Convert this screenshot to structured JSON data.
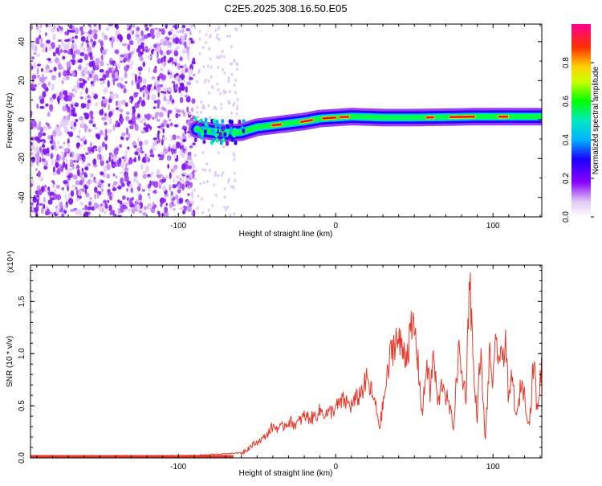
{
  "title": "C2E5.2025.308.16.50.E05",
  "chart_data": [
    {
      "type": "heatmap",
      "xlabel": "Height of straight line (km)",
      "ylabel": "Frequency (Hz)",
      "xlim": [
        -194,
        131
      ],
      "ylim": [
        -50,
        49
      ],
      "x_ticks": [
        -100,
        0,
        100
      ],
      "y_ticks": [
        -40,
        -20,
        0,
        20,
        40
      ],
      "colorbar": {
        "label": "Normalized spectral amplitude",
        "range": [
          0,
          1
        ],
        "ticks": [
          "0.0",
          "0.2",
          "0.4",
          "0.6",
          "0.8"
        ]
      },
      "ridge": {
        "x": [
          -88,
          -80,
          -70,
          -60,
          -50,
          -40,
          -30,
          -20,
          -10,
          0,
          10,
          30,
          50,
          70,
          90,
          110,
          131
        ],
        "y": [
          -5,
          -6,
          -7,
          -6.5,
          -4,
          -3,
          -2,
          -1,
          0.5,
          1,
          1.5,
          1,
          1,
          1.2,
          1.5,
          1.5,
          1.5
        ]
      }
    },
    {
      "type": "line",
      "xlabel": "Height of straight line (km)",
      "ylabel": "SNR (10 * v/v)",
      "y_multiplier": "(x10⁴)",
      "xlim": [
        -194,
        131
      ],
      "ylim": [
        0,
        1.85
      ],
      "x_ticks": [
        -100,
        0,
        100
      ],
      "y_ticks": [
        "0.0",
        "0.5",
        "1.0",
        "1.5"
      ],
      "series": [
        {
          "color": "#e8392b",
          "x": [
            -194,
            -150,
            -100,
            -80,
            -70,
            -60,
            -55,
            -50,
            -45,
            -40,
            -35,
            -30,
            -25,
            -20,
            -15,
            -10,
            -5,
            0,
            5,
            10,
            15,
            20,
            25,
            28,
            32,
            35,
            38,
            40,
            45,
            48,
            50,
            53,
            55,
            58,
            60,
            62,
            65,
            68,
            70,
            72,
            75,
            78,
            80,
            83,
            85,
            88,
            90,
            92,
            95,
            98,
            100,
            102,
            105,
            108,
            110,
            112,
            115,
            118,
            120,
            123,
            126,
            128,
            131
          ],
          "y": [
            0.02,
            0.02,
            0.02,
            0.03,
            0.04,
            0.05,
            0.1,
            0.15,
            0.2,
            0.3,
            0.28,
            0.35,
            0.32,
            0.4,
            0.38,
            0.45,
            0.42,
            0.48,
            0.55,
            0.5,
            0.6,
            0.75,
            0.52,
            0.3,
            0.7,
            1.0,
            1.15,
            1.1,
            1.0,
            1.2,
            1.25,
            0.8,
            0.4,
            0.95,
            0.6,
            1.0,
            0.5,
            0.75,
            0.6,
            0.5,
            0.3,
            1.05,
            0.8,
            0.6,
            1.85,
            0.7,
            0.4,
            1.05,
            0.15,
            1.0,
            0.7,
            1.1,
            0.9,
            1.15,
            0.5,
            0.8,
            0.35,
            0.75,
            0.6,
            0.3,
            0.95,
            0.45,
            0.9
          ]
        }
      ]
    }
  ]
}
